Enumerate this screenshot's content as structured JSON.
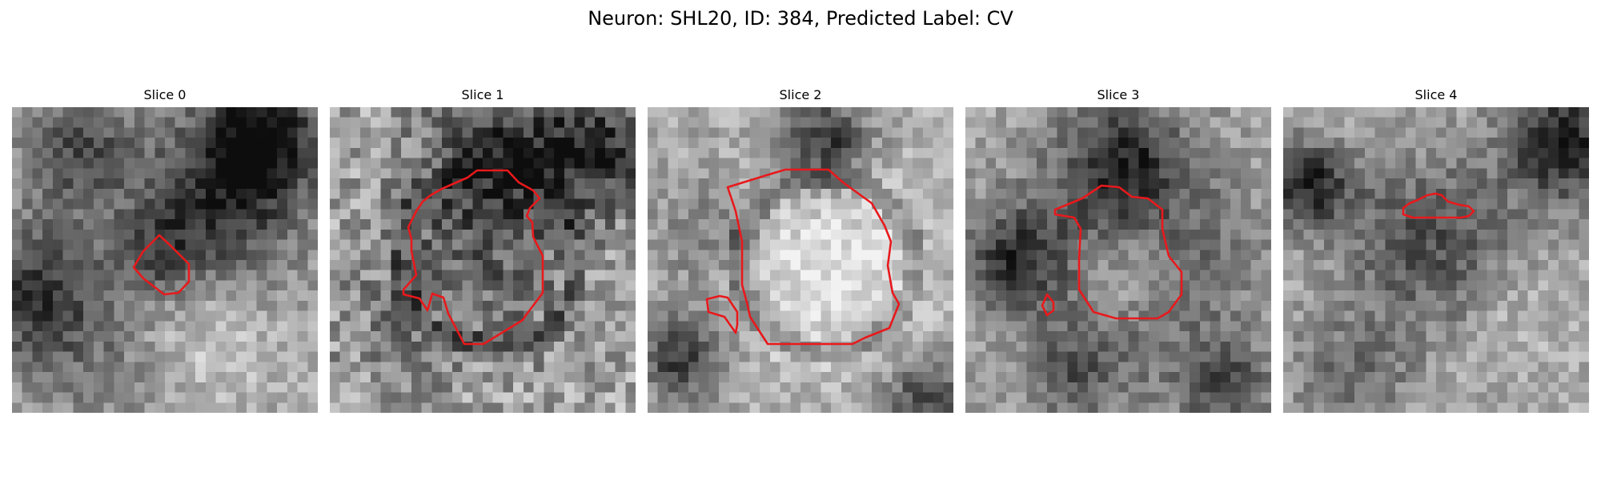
{
  "figure_title": "Neuron: SHL20, ID: 384, Predicted Label: CV",
  "contour_color": "#e8191c",
  "slices": [
    {
      "title": "Slice 0"
    },
    {
      "title": "Slice 1"
    },
    {
      "title": "Slice 2"
    },
    {
      "title": "Slice 3"
    },
    {
      "title": "Slice 4"
    }
  ]
}
